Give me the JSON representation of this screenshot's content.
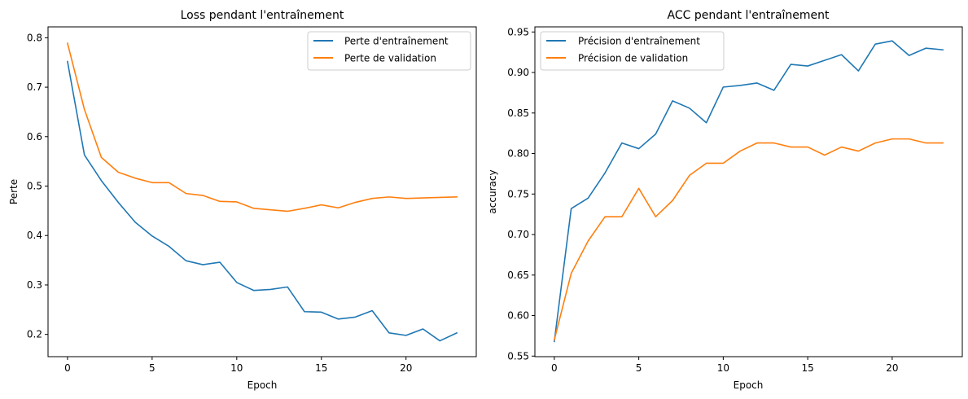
{
  "colors": {
    "train": "#1f77b4",
    "val": "#ff7f0e"
  },
  "chart_data": [
    {
      "type": "line",
      "title": "Loss pendant l'entraînement",
      "xlabel": "Epoch",
      "ylabel": "Perte",
      "xlim": [
        -1.15,
        24.15
      ],
      "ylim": [
        0.155,
        0.822
      ],
      "xticks": [
        0,
        5,
        10,
        15,
        20
      ],
      "yticks": [
        0.2,
        0.3,
        0.4,
        0.5,
        0.6,
        0.7,
        0.8
      ],
      "ytick_labels": [
        "0.2",
        "0.3",
        "0.4",
        "0.5",
        "0.6",
        "0.7",
        "0.8"
      ],
      "legend_position": "upper right",
      "x": [
        0,
        1,
        2,
        3,
        4,
        5,
        6,
        7,
        8,
        9,
        10,
        11,
        12,
        13,
        14,
        15,
        16,
        17,
        18,
        19,
        20,
        21,
        22,
        23
      ],
      "series": [
        {
          "name": "Perte d'entraînement",
          "color_key": "train",
          "values": [
            0.752,
            0.563,
            0.511,
            0.467,
            0.427,
            0.399,
            0.378,
            0.349,
            0.341,
            0.346,
            0.305,
            0.289,
            0.291,
            0.296,
            0.246,
            0.245,
            0.231,
            0.235,
            0.248,
            0.203,
            0.198,
            0.211,
            0.187,
            0.203
          ]
        },
        {
          "name": "Perte de validation",
          "color_key": "val",
          "values": [
            0.789,
            0.655,
            0.558,
            0.528,
            0.516,
            0.507,
            0.507,
            0.485,
            0.481,
            0.469,
            0.468,
            0.455,
            0.452,
            0.449,
            0.455,
            0.462,
            0.456,
            0.467,
            0.475,
            0.478,
            0.475,
            0.476,
            0.477,
            0.478
          ]
        }
      ]
    },
    {
      "type": "line",
      "title": "ACC pendant l'entraînement",
      "xlabel": "Epoch",
      "ylabel": "accuracy",
      "xlim": [
        -1.15,
        24.15
      ],
      "ylim": [
        0.5493,
        0.9563
      ],
      "xticks": [
        0,
        5,
        10,
        15,
        20
      ],
      "yticks": [
        0.55,
        0.6,
        0.65,
        0.7,
        0.75,
        0.8,
        0.85,
        0.9,
        0.95
      ],
      "ytick_labels": [
        "0.55",
        "0.60",
        "0.65",
        "0.70",
        "0.75",
        "0.80",
        "0.85",
        "0.90",
        "0.95"
      ],
      "legend_position": "upper left",
      "x": [
        0,
        1,
        2,
        3,
        4,
        5,
        6,
        7,
        8,
        9,
        10,
        11,
        12,
        13,
        14,
        15,
        16,
        17,
        18,
        19,
        20,
        21,
        22,
        23
      ],
      "series": [
        {
          "name": "Précision d'entraînement",
          "color_key": "train",
          "values": [
            0.568,
            0.732,
            0.745,
            0.776,
            0.813,
            0.806,
            0.824,
            0.865,
            0.856,
            0.838,
            0.882,
            0.884,
            0.887,
            0.878,
            0.91,
            0.908,
            0.915,
            0.922,
            0.902,
            0.935,
            0.939,
            0.921,
            0.93,
            0.928
          ]
        },
        {
          "name": "Précision de validation",
          "color_key": "val",
          "values": [
            0.57,
            0.652,
            0.692,
            0.722,
            0.722,
            0.757,
            0.722,
            0.742,
            0.773,
            0.788,
            0.788,
            0.803,
            0.813,
            0.813,
            0.808,
            0.808,
            0.798,
            0.808,
            0.803,
            0.813,
            0.818,
            0.818,
            0.813,
            0.813
          ]
        }
      ]
    }
  ]
}
